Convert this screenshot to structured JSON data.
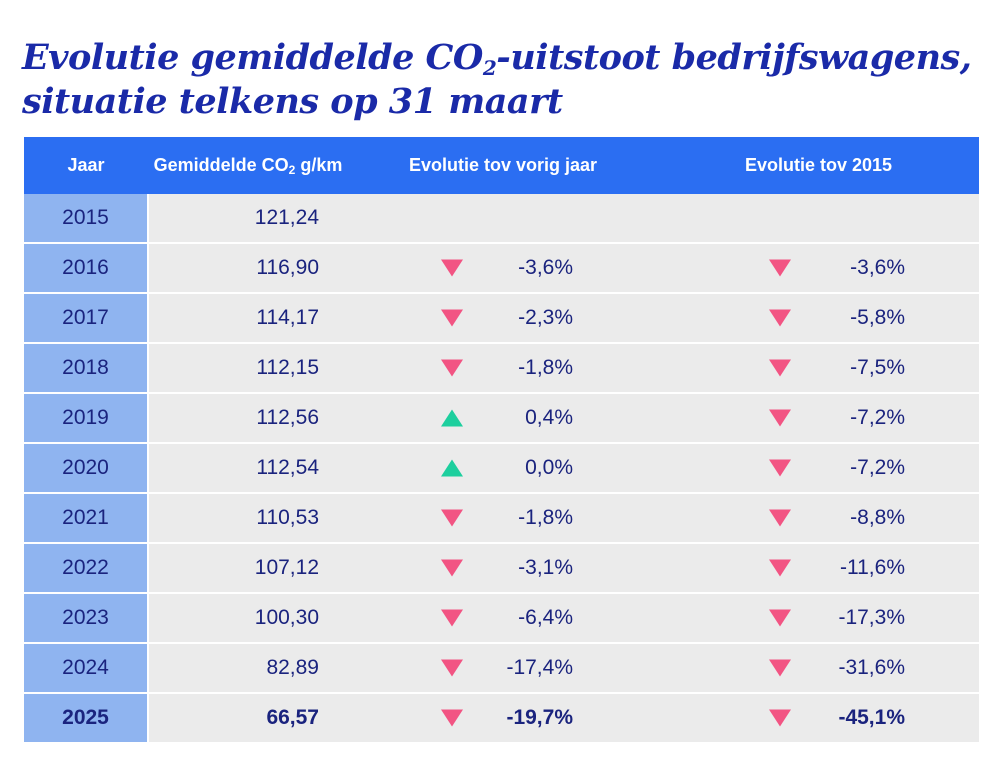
{
  "title": {
    "line1_a": "Evolutie gemiddelde CO",
    "line1_sub": "2",
    "line1_b": "-uitstoot bedrijfswagens,",
    "line2": "situatie telkens op 31 maart"
  },
  "colors": {
    "title": "#1a2aa8",
    "header_bg": "#2b6ef2",
    "year_bg": "#8fb4f0",
    "row_bg": "#ebebeb",
    "down": "#f25483",
    "up": "#1dcf9e"
  },
  "chart_data": {
    "type": "table",
    "columns": {
      "year": "Jaar",
      "co2_a": "Gemiddelde CO",
      "co2_sub": "2",
      "co2_b": " g/km",
      "yoy": "Evolutie tov vorig jaar",
      "vs2015": "Evolutie tov 2015"
    },
    "rows": [
      {
        "year": "2015",
        "co2": "121,24",
        "yoy": "",
        "yoy_dir": "",
        "vs2015": "",
        "vs2015_dir": "",
        "bold": false
      },
      {
        "year": "2016",
        "co2": "116,90",
        "yoy": "-3,6%",
        "yoy_dir": "down",
        "vs2015": "-3,6%",
        "vs2015_dir": "down",
        "bold": false
      },
      {
        "year": "2017",
        "co2": "114,17",
        "yoy": "-2,3%",
        "yoy_dir": "down",
        "vs2015": "-5,8%",
        "vs2015_dir": "down",
        "bold": false
      },
      {
        "year": "2018",
        "co2": "112,15",
        "yoy": "-1,8%",
        "yoy_dir": "down",
        "vs2015": "-7,5%",
        "vs2015_dir": "down",
        "bold": false
      },
      {
        "year": "2019",
        "co2": "112,56",
        "yoy": "0,4%",
        "yoy_dir": "up",
        "vs2015": "-7,2%",
        "vs2015_dir": "down",
        "bold": false
      },
      {
        "year": "2020",
        "co2": "112,54",
        "yoy": "0,0%",
        "yoy_dir": "up",
        "vs2015": "-7,2%",
        "vs2015_dir": "down",
        "bold": false
      },
      {
        "year": "2021",
        "co2": "110,53",
        "yoy": "-1,8%",
        "yoy_dir": "down",
        "vs2015": "-8,8%",
        "vs2015_dir": "down",
        "bold": false
      },
      {
        "year": "2022",
        "co2": "107,12",
        "yoy": "-3,1%",
        "yoy_dir": "down",
        "vs2015": "-11,6%",
        "vs2015_dir": "down",
        "bold": false
      },
      {
        "year": "2023",
        "co2": "100,30",
        "yoy": "-6,4%",
        "yoy_dir": "down",
        "vs2015": "-17,3%",
        "vs2015_dir": "down",
        "bold": false
      },
      {
        "year": "2024",
        "co2": "82,89",
        "yoy": "-17,4%",
        "yoy_dir": "down",
        "vs2015": "-31,6%",
        "vs2015_dir": "down",
        "bold": false
      },
      {
        "year": "2025",
        "co2": "66,57",
        "yoy": "-19,7%",
        "yoy_dir": "down",
        "vs2015": "-45,1%",
        "vs2015_dir": "down",
        "bold": true
      }
    ]
  }
}
